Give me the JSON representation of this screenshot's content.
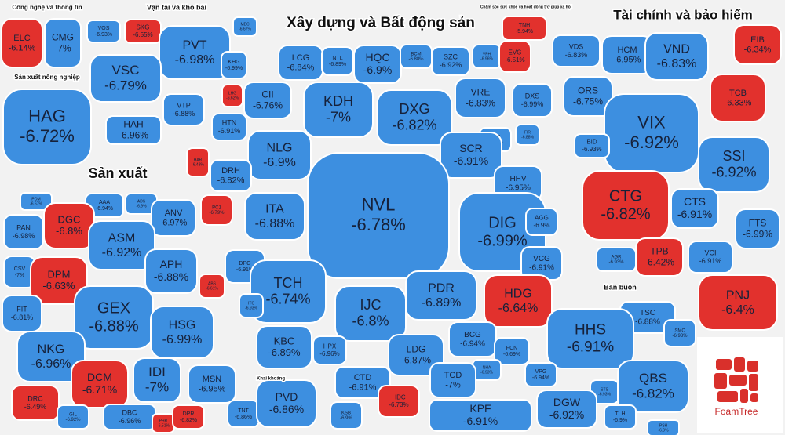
{
  "groups": [
    {
      "title": "Công nghệ và thông tin",
      "cells": [
        {
          "ticker": "ELC",
          "change": "-6.14%",
          "red": true
        },
        {
          "ticker": "CMG",
          "change": "-7%"
        }
      ]
    },
    {
      "title": "Vận tải và kho bãi",
      "cells": [
        {
          "ticker": "VOS",
          "change": "-6.93%"
        },
        {
          "ticker": "SKG",
          "change": "-6.55%",
          "red": true
        },
        {
          "ticker": "PVT",
          "change": "-6.98%"
        },
        {
          "ticker": "VSC",
          "change": "-6.79%"
        },
        {
          "ticker": "VTP",
          "change": "-6.88%"
        },
        {
          "ticker": "HAH",
          "change": "-6.96%"
        },
        {
          "ticker": "MBC",
          "change": "-6.67%"
        }
      ]
    },
    {
      "title": "Sản xuất nông nghiệp",
      "cells": [
        {
          "ticker": "HAG",
          "change": "-6.72%"
        }
      ]
    },
    {
      "title": "Xây dựng và Bất động sản",
      "cells": [
        {
          "ticker": "KHG",
          "change": "-6.99%"
        },
        {
          "ticker": "LCG",
          "change": "-6.84%"
        },
        {
          "ticker": "NTL",
          "change": "-6.89%"
        },
        {
          "ticker": "HQC",
          "change": "-6.9%"
        },
        {
          "ticker": "BCM",
          "change": "-6.88%"
        },
        {
          "ticker": "SZC",
          "change": "-6.92%"
        },
        {
          "ticker": "VPH",
          "change": "-6.96%"
        },
        {
          "ticker": "EVG",
          "change": "-6.51%",
          "red": true
        },
        {
          "ticker": "LHG",
          "change": "-6.62%",
          "red": true
        },
        {
          "ticker": "CII",
          "change": "-6.76%"
        },
        {
          "ticker": "KDH",
          "change": "-7%"
        },
        {
          "ticker": "DXG",
          "change": "-6.82%"
        },
        {
          "ticker": "VRE",
          "change": "-6.83%"
        },
        {
          "ticker": "DXS",
          "change": "-6.99%"
        },
        {
          "ticker": "HTN",
          "change": "-6.91%"
        },
        {
          "ticker": "HBC",
          "change": "-6.93%"
        },
        {
          "ticker": "FIR",
          "change": "-6.88%"
        },
        {
          "ticker": "HAR",
          "change": "-6.43%",
          "red": true
        },
        {
          "ticker": "NLG",
          "change": "-6.9%"
        },
        {
          "ticker": "SCR",
          "change": "-6.91%"
        },
        {
          "ticker": "DRH",
          "change": "-6.82%"
        },
        {
          "ticker": "HHV",
          "change": "-6.95%"
        },
        {
          "ticker": "NVL",
          "change": "-6.78%"
        },
        {
          "ticker": "ITA",
          "change": "-6.88%"
        },
        {
          "ticker": "PC1",
          "change": "-6.79%",
          "red": true
        },
        {
          "ticker": "DIG",
          "change": "-6.99%"
        },
        {
          "ticker": "AGG",
          "change": "-6.9%"
        },
        {
          "ticker": "DPG",
          "change": "-6.91%"
        },
        {
          "ticker": "VCG",
          "change": "-6.91%"
        },
        {
          "ticker": "TCH",
          "change": "-6.74%"
        },
        {
          "ticker": "ITC",
          "change": "-6.93%"
        },
        {
          "ticker": "IJC",
          "change": "-6.8%"
        },
        {
          "ticker": "PDR",
          "change": "-6.89%"
        },
        {
          "ticker": "HDG",
          "change": "-6.64%",
          "red": true
        },
        {
          "ticker": "KBC",
          "change": "-6.89%"
        },
        {
          "ticker": "HPX",
          "change": "-6.96%"
        },
        {
          "ticker": "BCG",
          "change": "-6.94%"
        },
        {
          "ticker": "LDG",
          "change": "-6.87%"
        },
        {
          "ticker": "FCN",
          "change": "-6.69%"
        },
        {
          "ticker": "NHA",
          "change": "-6.93%"
        },
        {
          "ticker": "CTD",
          "change": "-6.91%"
        },
        {
          "ticker": "TCD",
          "change": "-7%"
        },
        {
          "ticker": "HDC",
          "change": "-6.73%",
          "red": true
        },
        {
          "ticker": "KPF",
          "change": "-6.91%"
        }
      ]
    },
    {
      "title": "Chăm sóc sức khỏe và hoạt động trợ giúp xã hội",
      "cells": [
        {
          "ticker": "TNH",
          "change": "-5.94%",
          "red": true
        }
      ]
    },
    {
      "title": "Tài chính và bảo hiểm",
      "cells": [
        {
          "ticker": "VDS",
          "change": "-6.83%"
        },
        {
          "ticker": "HCM",
          "change": "-6.95%"
        },
        {
          "ticker": "VND",
          "change": "-6.83%"
        },
        {
          "ticker": "EIB",
          "change": "-6.34%",
          "red": true
        },
        {
          "ticker": "ORS",
          "change": "-6.75%"
        },
        {
          "ticker": "VIX",
          "change": "-6.92%"
        },
        {
          "ticker": "TCB",
          "change": "-6.33%",
          "red": true
        },
        {
          "ticker": "BID",
          "change": "-6.93%"
        },
        {
          "ticker": "SSI",
          "change": "-6.92%"
        },
        {
          "ticker": "CTG",
          "change": "-6.82%",
          "red": true
        },
        {
          "ticker": "CTS",
          "change": "-6.91%"
        },
        {
          "ticker": "FTS",
          "change": "-6.99%"
        },
        {
          "ticker": "AGR",
          "change": "-6.93%"
        },
        {
          "ticker": "TPB",
          "change": "-6.42%",
          "red": true
        },
        {
          "ticker": "VCI",
          "change": "-6.91%"
        }
      ]
    },
    {
      "cells": [
        {
          "ticker": "PNJ",
          "change": "-6.4%",
          "red": true
        }
      ]
    },
    {
      "title": "Sản xuất",
      "cells": [
        {
          "ticker": "POM",
          "change": "-6.67%"
        },
        {
          "ticker": "AAA",
          "change": "-6.94%"
        },
        {
          "ticker": "ADS",
          "change": "-6.9%"
        },
        {
          "ticker": "DGC",
          "change": "-6.8%",
          "red": true
        },
        {
          "ticker": "ANV",
          "change": "-6.97%"
        },
        {
          "ticker": "PAN",
          "change": "-6.98%"
        },
        {
          "ticker": "ASM",
          "change": "-6.92%"
        },
        {
          "ticker": "APH",
          "change": "-6.88%"
        },
        {
          "ticker": "CSV",
          "change": "-7%"
        },
        {
          "ticker": "DPM",
          "change": "-6.63%",
          "red": true
        },
        {
          "ticker": "ABS",
          "change": "-6.61%",
          "red": true
        },
        {
          "ticker": "FIT",
          "change": "-6.81%"
        },
        {
          "ticker": "GEX",
          "change": "-6.88%"
        },
        {
          "ticker": "HSG",
          "change": "-6.99%"
        },
        {
          "ticker": "NKG",
          "change": "-6.96%"
        },
        {
          "ticker": "DCM",
          "change": "-6.71%",
          "red": true
        },
        {
          "ticker": "IDI",
          "change": "-7%"
        },
        {
          "ticker": "MSN",
          "change": "-6.95%"
        },
        {
          "ticker": "DRC",
          "change": "-6.49%",
          "red": true
        },
        {
          "ticker": "GIL",
          "change": "-6.92%"
        },
        {
          "ticker": "DBC",
          "change": "-6.96%"
        },
        {
          "ticker": "PHR",
          "change": "-6.51%",
          "red": true
        },
        {
          "ticker": "DPR",
          "change": "-6.82%",
          "red": true
        }
      ]
    },
    {
      "title": "Khai khoáng",
      "cells": [
        {
          "ticker": "TNT",
          "change": "-6.86%"
        },
        {
          "ticker": "PVD",
          "change": "-6.86%"
        },
        {
          "ticker": "KSB",
          "change": "-6.9%"
        }
      ]
    },
    {
      "title": "Bán buôn",
      "cells": [
        {
          "ticker": "TSC",
          "change": "-6.88%"
        },
        {
          "ticker": "SMC",
          "change": "-6.93%"
        },
        {
          "ticker": "HHS",
          "change": "-6.91%"
        },
        {
          "ticker": "VPG",
          "change": "-6.94%"
        },
        {
          "ticker": "STS",
          "change": "-6.93%"
        },
        {
          "ticker": "QBS",
          "change": "-6.82%"
        },
        {
          "ticker": "DGW",
          "change": "-6.92%"
        },
        {
          "ticker": "TLH",
          "change": "-6.9%"
        },
        {
          "ticker": "PSH",
          "change": "-6.9%"
        }
      ]
    }
  ],
  "logo": "FoamTree"
}
